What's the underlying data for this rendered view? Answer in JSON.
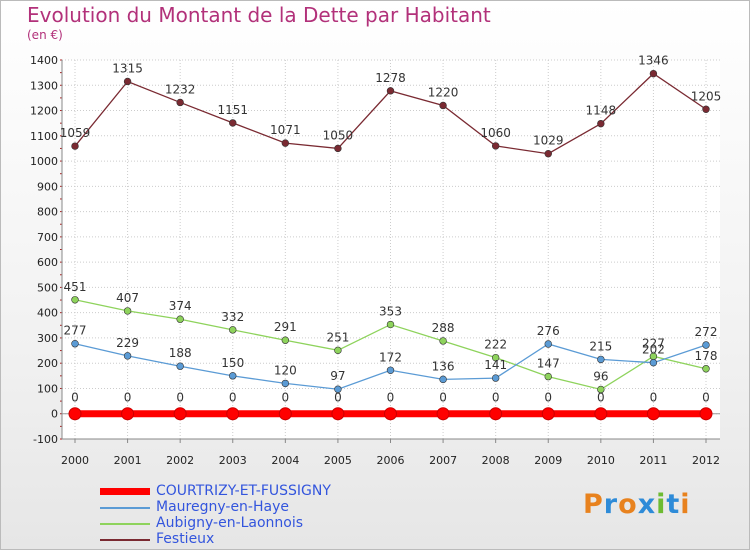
{
  "title": "Evolution du Montant de la Dette par Habitant",
  "subtitle": "(en €)",
  "logo": {
    "text": "Proxiti",
    "colors": [
      "#e8821e",
      "#2e8bd8",
      "#e8821e",
      "#2e8bd8",
      "#6dbb32",
      "#2e8bd8",
      "#e8821e"
    ]
  },
  "chart_data": {
    "type": "line",
    "x": [
      "2000",
      "2001",
      "2002",
      "2003",
      "2004",
      "2005",
      "2006",
      "2007",
      "2008",
      "2009",
      "2010",
      "2011",
      "2012"
    ],
    "ylim": [
      -100,
      1400
    ],
    "yticks": [
      -100,
      0,
      100,
      200,
      300,
      400,
      500,
      600,
      700,
      800,
      900,
      1000,
      1100,
      1200,
      1300,
      1400
    ],
    "grid": true,
    "legend_position": "bottom-left",
    "series": [
      {
        "name": "Festieux",
        "color": "#7a2a32",
        "values": [
          1059,
          1315,
          1232,
          1151,
          1071,
          1050,
          1278,
          1220,
          1060,
          1029,
          1148,
          1346,
          1205
        ]
      },
      {
        "name": "Aubigny-en-Laonnois",
        "color": "#8ed35c",
        "values": [
          451,
          407,
          374,
          332,
          291,
          251,
          353,
          288,
          222,
          147,
          96,
          227,
          178
        ]
      },
      {
        "name": "Mauregny-en-Haye",
        "color": "#5b9bd5",
        "values": [
          277,
          229,
          188,
          150,
          120,
          97,
          172,
          136,
          141,
          276,
          215,
          202,
          272
        ]
      },
      {
        "name": "COURTRIZY-ET-FUSSIGNY",
        "color": "#ff0000",
        "values": [
          0,
          0,
          0,
          0,
          0,
          0,
          0,
          0,
          0,
          0,
          0,
          0,
          0
        ]
      }
    ]
  },
  "legend": [
    {
      "name": "COURTRIZY-ET-FUSSIGNY",
      "color": "#ff0000"
    },
    {
      "name": "Mauregny-en-Haye",
      "color": "#5b9bd5"
    },
    {
      "name": "Aubigny-en-Laonnois",
      "color": "#8ed35c"
    },
    {
      "name": "Festieux",
      "color": "#7a2a32"
    }
  ]
}
